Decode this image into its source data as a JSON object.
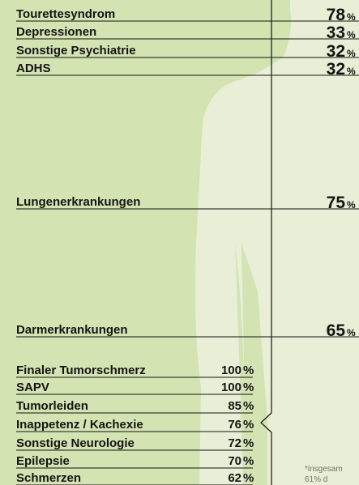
{
  "unit": "%",
  "top_items": [
    {
      "label": "Tourettesyndrom",
      "value": 78
    },
    {
      "label": "Depressionen",
      "value": 33
    },
    {
      "label": "Sonstige Psychiatrie",
      "value": 32
    },
    {
      "label": "ADHS",
      "value": 32
    }
  ],
  "middle_items": [
    {
      "label": "Lungenerkrankungen",
      "value": 75
    },
    {
      "label": "Darmerkrankungen",
      "value": 65
    }
  ],
  "bottom_items": [
    {
      "label": "Finaler Tumorschmerz",
      "value": 100
    },
    {
      "label": "SAPV",
      "value": 100
    },
    {
      "label": "Tumorleiden",
      "value": 85
    },
    {
      "label": "Inappetenz / Kachexie",
      "value": 76
    },
    {
      "label": "Sonstige Neurologie",
      "value": 72
    },
    {
      "label": "Epilepsie",
      "value": 70
    },
    {
      "label": "Schmerzen",
      "value": 62
    }
  ],
  "footnote": [
    "*insgesam",
    "61% d"
  ]
}
